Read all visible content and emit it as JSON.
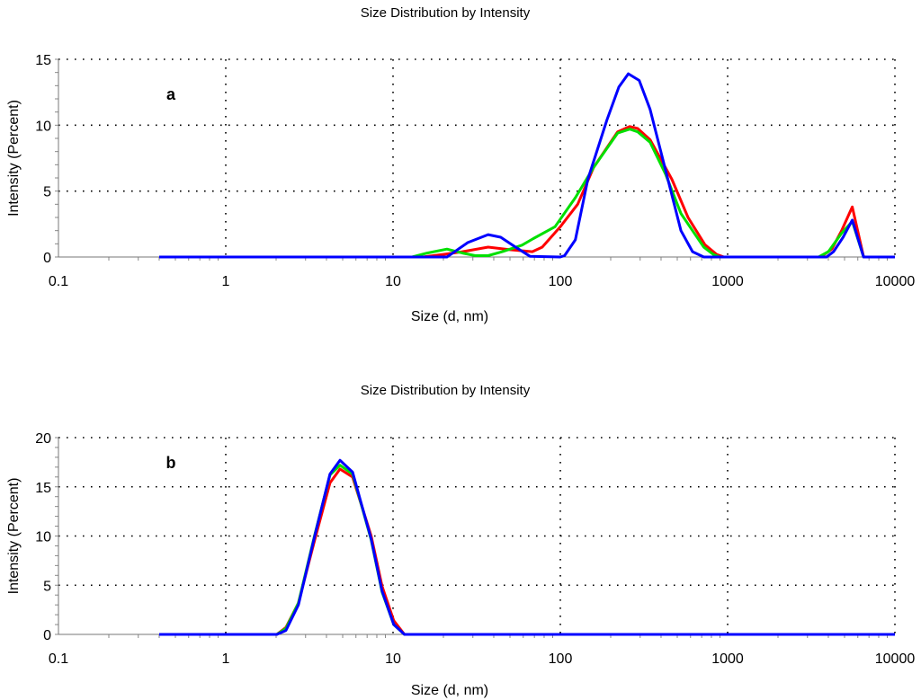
{
  "chart_data": [
    {
      "type": "line",
      "title": "Size Distribution by Intensity",
      "panel_label": "a",
      "xlabel": "Size (d, nm)",
      "ylabel": "Intensity (Percent)",
      "xscale": "log",
      "xlim": [
        0.1,
        10000
      ],
      "ylim": [
        0,
        15
      ],
      "xticks": [
        "0.1",
        "1",
        "10",
        "100",
        "1000",
        "10000"
      ],
      "yticks": [
        "0",
        "5",
        "10",
        "15"
      ],
      "grid": true,
      "series": [
        {
          "name": "red",
          "color": "#ff0000",
          "x": [
            0.4,
            15,
            20,
            26,
            37,
            50,
            68,
            78,
            100,
            127,
            158,
            220,
            260,
            290,
            344,
            464,
            580,
            730,
            860,
            950,
            3600,
            4200,
            4800,
            5560,
            6500,
            10000
          ],
          "y": [
            0,
            0,
            0.2,
            0.4,
            0.75,
            0.55,
            0.4,
            0.75,
            2.3,
            4.0,
            6.8,
            9.5,
            9.9,
            9.75,
            8.9,
            5.9,
            3.0,
            0.95,
            0.2,
            0,
            0,
            0.6,
            2.0,
            3.8,
            0,
            0
          ]
        },
        {
          "name": "green",
          "color": "#00e000",
          "x": [
            0.4,
            13,
            16,
            21,
            26,
            31,
            37,
            45,
            59,
            69,
            93,
            123,
            158,
            220,
            260,
            290,
            344,
            425,
            526,
            617,
            720,
            820,
            900,
            3500,
            4000,
            4800,
            5560,
            6500,
            10000
          ],
          "y": [
            0,
            0,
            0.3,
            0.6,
            0.3,
            0.1,
            0.1,
            0.4,
            0.9,
            1.4,
            2.3,
            4.5,
            6.8,
            9.4,
            9.7,
            9.5,
            8.7,
            6.3,
            3.3,
            2.0,
            0.75,
            0.2,
            0,
            0,
            0.4,
            1.8,
            2.7,
            0,
            0
          ]
        },
        {
          "name": "blue",
          "color": "#0000ff",
          "x": [
            0.4,
            21,
            28,
            37,
            44,
            54,
            66,
            100,
            106,
            123,
            146,
            190,
            224,
            255,
            296,
            344,
            526,
            617,
            720,
            3900,
            4300,
            4900,
            5560,
            6500,
            10000
          ],
          "y": [
            0,
            0,
            1.1,
            1.7,
            1.5,
            0.75,
            0.05,
            0,
            0.1,
            1.3,
            5.9,
            10.4,
            12.9,
            13.9,
            13.4,
            11.2,
            2.0,
            0.4,
            0,
            0,
            0.4,
            1.5,
            2.8,
            0,
            0
          ]
        }
      ]
    },
    {
      "type": "line",
      "title": "Size Distribution by Intensity",
      "panel_label": "b",
      "xlabel": "Size (d, nm)",
      "ylabel": "Intensity (Percent)",
      "xscale": "log",
      "xlim": [
        0.1,
        10000
      ],
      "ylim": [
        0,
        20
      ],
      "xticks": [
        "0.1",
        "1",
        "10",
        "100",
        "1000",
        "10000"
      ],
      "yticks": [
        "0",
        "5",
        "10",
        "15",
        "20"
      ],
      "grid": true,
      "series": [
        {
          "name": "red",
          "color": "#ff0000",
          "x": [
            0.4,
            2.02,
            2.29,
            2.72,
            3.4,
            4.2,
            4.82,
            5.73,
            6.46,
            7.4,
            8.6,
            10.1,
            11.7,
            10000
          ],
          "y": [
            0,
            0,
            0.7,
            3.2,
            9.6,
            15.4,
            16.8,
            16.0,
            13.2,
            10.0,
            4.9,
            1.4,
            0,
            0
          ]
        },
        {
          "name": "green",
          "color": "#00e000",
          "x": [
            0.4,
            2.02,
            2.29,
            2.72,
            3.4,
            4.2,
            4.82,
            5.73,
            6.46,
            7.4,
            8.6,
            10.1,
            11.7,
            10000
          ],
          "y": [
            0,
            0,
            0.6,
            3.2,
            10.1,
            16.2,
            17.2,
            16.3,
            13.2,
            9.6,
            4.3,
            1.0,
            0,
            0
          ]
        },
        {
          "name": "blue",
          "color": "#0000ff",
          "x": [
            0.4,
            2.02,
            2.29,
            2.72,
            3.4,
            4.2,
            4.82,
            5.73,
            6.46,
            7.4,
            8.6,
            10.1,
            11.7,
            10000
          ],
          "y": [
            0,
            0,
            0.4,
            3.0,
            10.0,
            16.3,
            17.7,
            16.5,
            13.3,
            9.7,
            4.4,
            1.0,
            0,
            0
          ]
        }
      ]
    }
  ]
}
